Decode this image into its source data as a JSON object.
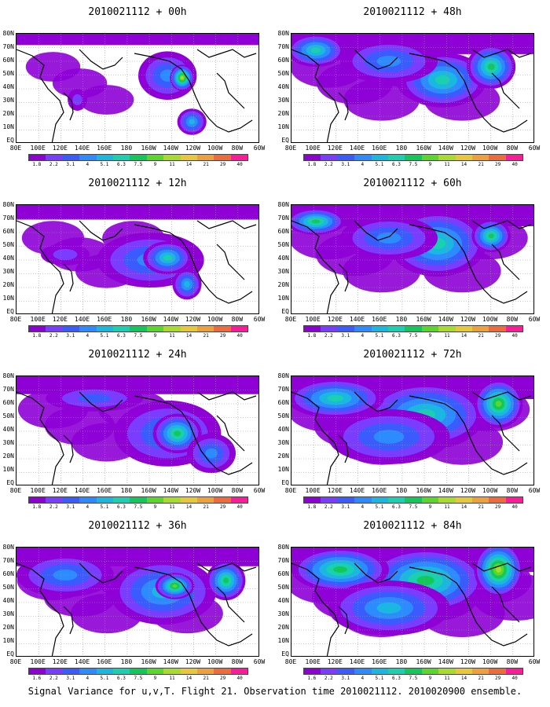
{
  "panels": [
    {
      "title": "2010021112 + 00h",
      "intensity": 0.15,
      "blobs": [
        [
          0.62,
          0.38,
          0.12,
          0.22,
          3
        ],
        [
          0.68,
          0.4,
          0.05,
          0.12,
          8
        ],
        [
          0.72,
          0.8,
          0.06,
          0.12,
          4
        ],
        [
          0.25,
          0.6,
          0.04,
          0.1,
          1
        ]
      ]
    },
    {
      "title": "2010021112 + 12h",
      "intensity": 0.35,
      "blobs": [
        [
          0.55,
          0.5,
          0.22,
          0.25,
          3
        ],
        [
          0.62,
          0.48,
          0.1,
          0.15,
          5
        ],
        [
          0.7,
          0.72,
          0.06,
          0.14,
          4
        ],
        [
          0.2,
          0.45,
          0.1,
          0.1,
          1
        ]
      ]
    },
    {
      "title": "2010021112 + 24h",
      "intensity": 0.55,
      "blobs": [
        [
          0.62,
          0.52,
          0.22,
          0.3,
          3
        ],
        [
          0.66,
          0.52,
          0.1,
          0.18,
          6
        ],
        [
          0.32,
          0.2,
          0.2,
          0.12,
          2
        ],
        [
          0.8,
          0.7,
          0.1,
          0.18,
          3
        ]
      ]
    },
    {
      "title": "2010021112 + 36h",
      "intensity": 0.6,
      "blobs": [
        [
          0.6,
          0.4,
          0.22,
          0.3,
          4
        ],
        [
          0.65,
          0.35,
          0.08,
          0.12,
          7
        ],
        [
          0.86,
          0.3,
          0.08,
          0.18,
          6
        ],
        [
          0.2,
          0.25,
          0.2,
          0.2,
          3
        ]
      ]
    },
    {
      "title": "2010021112 + 48h",
      "intensity": 0.7,
      "blobs": [
        [
          0.62,
          0.42,
          0.18,
          0.25,
          5
        ],
        [
          0.82,
          0.3,
          0.1,
          0.2,
          6
        ],
        [
          0.1,
          0.15,
          0.12,
          0.15,
          5
        ],
        [
          0.4,
          0.25,
          0.2,
          0.2,
          3
        ]
      ]
    },
    {
      "title": "2010021112 + 60h",
      "intensity": 0.75,
      "blobs": [
        [
          0.6,
          0.35,
          0.2,
          0.3,
          5
        ],
        [
          0.82,
          0.28,
          0.08,
          0.15,
          6
        ],
        [
          0.1,
          0.15,
          0.12,
          0.12,
          6
        ],
        [
          0.4,
          0.3,
          0.2,
          0.2,
          3
        ]
      ]
    },
    {
      "title": "2010021112 + 72h",
      "intensity": 0.85,
      "blobs": [
        [
          0.55,
          0.35,
          0.25,
          0.3,
          5
        ],
        [
          0.85,
          0.25,
          0.1,
          0.22,
          7
        ],
        [
          0.18,
          0.2,
          0.2,
          0.18,
          5
        ],
        [
          0.4,
          0.55,
          0.25,
          0.25,
          3
        ]
      ]
    },
    {
      "title": "2010021112 + 84h",
      "intensity": 0.95,
      "blobs": [
        [
          0.55,
          0.3,
          0.25,
          0.3,
          6
        ],
        [
          0.85,
          0.2,
          0.1,
          0.25,
          8
        ],
        [
          0.2,
          0.2,
          0.2,
          0.2,
          6
        ],
        [
          0.4,
          0.55,
          0.25,
          0.25,
          4
        ]
      ]
    }
  ],
  "lat_labels": [
    "80N",
    "70N",
    "60N",
    "50N",
    "40N",
    "30N",
    "20N",
    "10N",
    "EQ"
  ],
  "lon_labels": [
    "80E",
    "100E",
    "120E",
    "140E",
    "160E",
    "180",
    "160W",
    "140W",
    "120W",
    "100W",
    "80W",
    "60W"
  ],
  "colorbar": {
    "levels": [
      "1.8",
      "2.2",
      "3.1",
      "4",
      "5.1",
      "6.3",
      "7.5",
      "9",
      "11",
      "14",
      "21",
      "29",
      "40"
    ],
    "level_labels": [
      "1.8",
      "2.2",
      "3.1",
      "4",
      "5.1",
      "6.3",
      "7.5",
      "9",
      "11",
      "14",
      "21",
      "29",
      "40"
    ],
    "level_labels_36h": [
      "1.6",
      "2.2",
      "3.1",
      "4",
      "5.1",
      "6.3",
      "7.5",
      "9",
      "11",
      "14",
      "21",
      "29",
      "40"
    ],
    "level_labels_84h": [
      "1.6",
      "2.2",
      "3.1",
      "4",
      "5.1",
      "6.3",
      "7.5",
      "9",
      "11",
      "14",
      "21",
      "29",
      "40"
    ],
    "colors": [
      "#8e00d6",
      "#7a3cff",
      "#3a5cff",
      "#2c8cff",
      "#1ab8e0",
      "#19d0b0",
      "#12c858",
      "#5ad82a",
      "#a8dc2c",
      "#e6c83a",
      "#f0a03a",
      "#f06a3a",
      "#ff1a9a"
    ]
  },
  "caption": "Signal Variance for u,v,T. Flight 21. Observation time 2010021112. 2010020900 ensemble."
}
